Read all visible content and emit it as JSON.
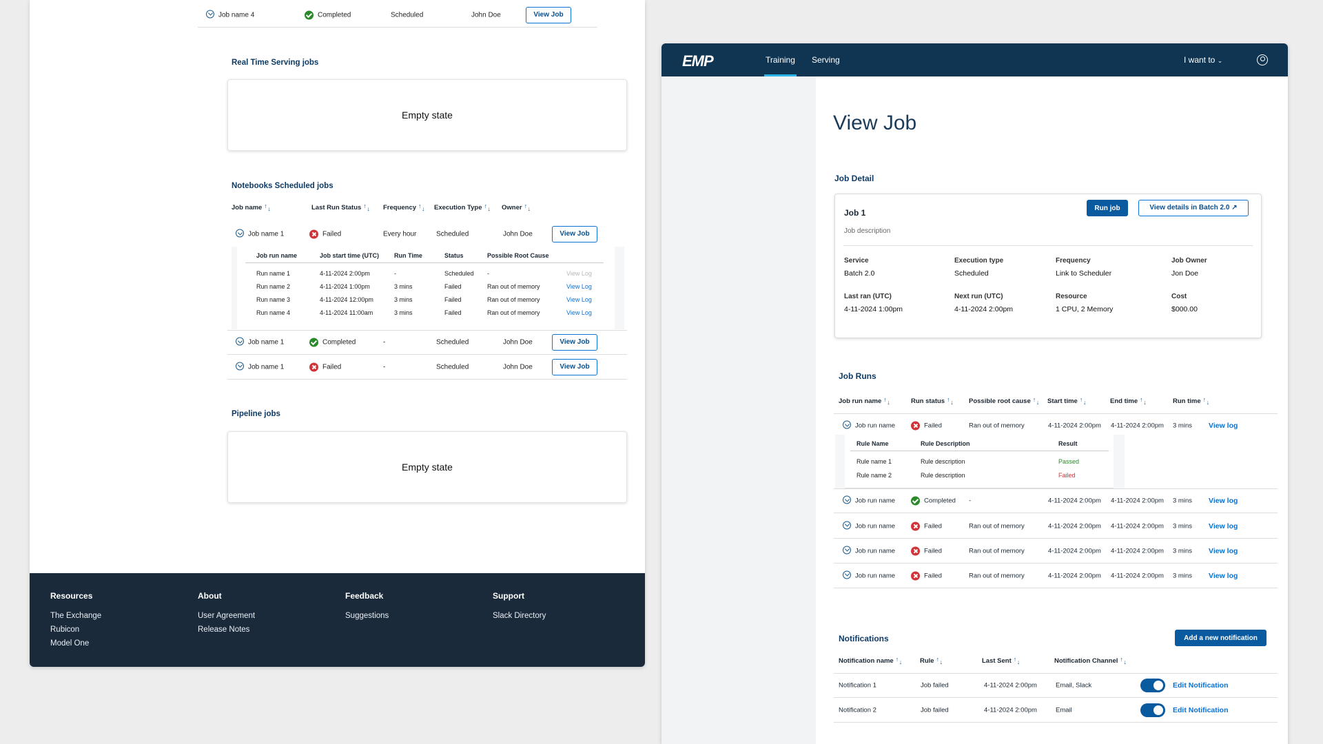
{
  "left": {
    "top_row": {
      "name": "Job name 4",
      "status": "Completed",
      "type": "Scheduled",
      "owner": "John Doe",
      "button": "View Job"
    },
    "realtime": {
      "title": "Real Time Serving jobs",
      "empty": "Empty state"
    },
    "notebooks": {
      "title": "Notebooks Scheduled jobs",
      "headers": [
        "Job name",
        "Last Run Status",
        "Frequency",
        "Execution Type",
        "Owner"
      ],
      "rows": [
        {
          "name": "Job name 1",
          "status": "Failed",
          "frequency": "Every hour",
          "type": "Scheduled",
          "owner": "John Doe",
          "button": "View Job"
        },
        {
          "name": "Job name 1",
          "status": "Completed",
          "frequency": "-",
          "type": "Scheduled",
          "owner": "John Doe",
          "button": "View Job"
        },
        {
          "name": "Job name 1",
          "status": "Failed",
          "frequency": "-",
          "type": "Scheduled",
          "owner": "John Doe",
          "button": "View Job"
        }
      ],
      "sub_headers": [
        "Job run name",
        "Job start time (UTC)",
        "Run Time",
        "Status",
        "Possible Root Cause"
      ],
      "sub_rows": [
        {
          "name": "Run name 1",
          "start": "4-11-2024 2:00pm",
          "runtime": "-",
          "status": "Scheduled",
          "cause": "-",
          "log": "View Log"
        },
        {
          "name": "Run name 2",
          "start": "4-11-2024 1:00pm",
          "runtime": "3 mins",
          "status": "Failed",
          "cause": "Ran out of memory",
          "log": "View Log"
        },
        {
          "name": "Run name 3",
          "start": "4-11-2024 12:00pm",
          "runtime": "3 mins",
          "status": "Failed",
          "cause": "Ran out of memory",
          "log": "View Log"
        },
        {
          "name": "Run name 4",
          "start": "4-11-2024 11:00am",
          "runtime": "3 mins",
          "status": "Failed",
          "cause": "Ran out of memory",
          "log": "View Log"
        }
      ]
    },
    "pipeline": {
      "title": "Pipeline jobs",
      "empty": "Empty state"
    },
    "footer": {
      "cols": [
        {
          "head": "Resources",
          "links": [
            "The Exchange",
            "Rubicon",
            "Model One"
          ]
        },
        {
          "head": "About",
          "links": [
            "User Agreement",
            "Release Notes"
          ]
        },
        {
          "head": "Feedback",
          "links": [
            "Suggestions"
          ]
        },
        {
          "head": "Support",
          "links": [
            "Slack Directory"
          ]
        }
      ]
    }
  },
  "right": {
    "nav": {
      "logo": "EMP",
      "tabs": [
        "Training",
        "Serving"
      ],
      "iwant": "I want to"
    },
    "title": "View Job",
    "detail": {
      "section": "Job Detail",
      "job_name": "Job 1",
      "description": "Job description",
      "run_button": "Run job",
      "batch_button": "View details in Batch 2.0",
      "fields": [
        {
          "label": "Service",
          "value": "Batch 2.0"
        },
        {
          "label": "Execution type",
          "value": "Scheduled"
        },
        {
          "label": "Frequency",
          "value": "Link to Scheduler"
        },
        {
          "label": "Job Owner",
          "value": "Jon Doe"
        },
        {
          "label": "Last ran (UTC)",
          "value": "4-11-2024 1:00pm"
        },
        {
          "label": "Next run (UTC)",
          "value": "4-11-2024 2:00pm"
        },
        {
          "label": "Resource",
          "value": "1 CPU, 2 Memory"
        },
        {
          "label": "Cost",
          "value": "$000.00"
        }
      ]
    },
    "runs": {
      "section": "Job Runs",
      "headers": [
        "Job run name",
        "Run status",
        "Possible root cause",
        "Start time",
        "End time",
        "Run time"
      ],
      "rows": [
        {
          "name": "Job run name",
          "status": "Failed",
          "cause": "Ran out of memory",
          "start": "4-11-2024 2:00pm",
          "end": "4-11-2024 2:00pm",
          "runtime": "3 mins",
          "log": "View log"
        },
        {
          "name": "Job run name",
          "status": "Completed",
          "cause": "-",
          "start": "4-11-2024 2:00pm",
          "end": "4-11-2024 2:00pm",
          "runtime": "3 mins",
          "log": "View log"
        },
        {
          "name": "Job run name",
          "status": "Failed",
          "cause": "Ran out of memory",
          "start": "4-11-2024 2:00pm",
          "end": "4-11-2024 2:00pm",
          "runtime": "3 mins",
          "log": "View log"
        },
        {
          "name": "Job run name",
          "status": "Failed",
          "cause": "Ran out of memory",
          "start": "4-11-2024 2:00pm",
          "end": "4-11-2024 2:00pm",
          "runtime": "3 mins",
          "log": "View log"
        },
        {
          "name": "Job run name",
          "status": "Failed",
          "cause": "Ran out of memory",
          "start": "4-11-2024 2:00pm",
          "end": "4-11-2024 2:00pm",
          "runtime": "3 mins",
          "log": "View log"
        }
      ],
      "rule_headers": [
        "Rule Name",
        "Rule Description",
        "Result"
      ],
      "rules": [
        {
          "name": "Rule name 1",
          "desc": "Rule description",
          "result": "Passed"
        },
        {
          "name": "Rule name 2",
          "desc": "Rule description",
          "result": "Failed"
        }
      ]
    },
    "notifications": {
      "section": "Notifications",
      "add_button": "Add a new notification",
      "headers": [
        "Notification name",
        "Rule",
        "Last Sent",
        "Notification Channel"
      ],
      "rows": [
        {
          "name": "Notification 1",
          "rule": "Job failed",
          "sent": "4-11-2024 2:00pm",
          "channel": "Email, Slack",
          "edit": "Edit Notification"
        },
        {
          "name": "Notification 2",
          "rule": "Job failed",
          "sent": "4-11-2024 2:00pm",
          "channel": "Email",
          "edit": "Edit Notification"
        }
      ]
    }
  },
  "colors": {
    "navy": "#0f3553",
    "link": "#0972d3",
    "success": "#2a8a2a",
    "error": "#d13438",
    "footer": "#1b2a3a"
  }
}
